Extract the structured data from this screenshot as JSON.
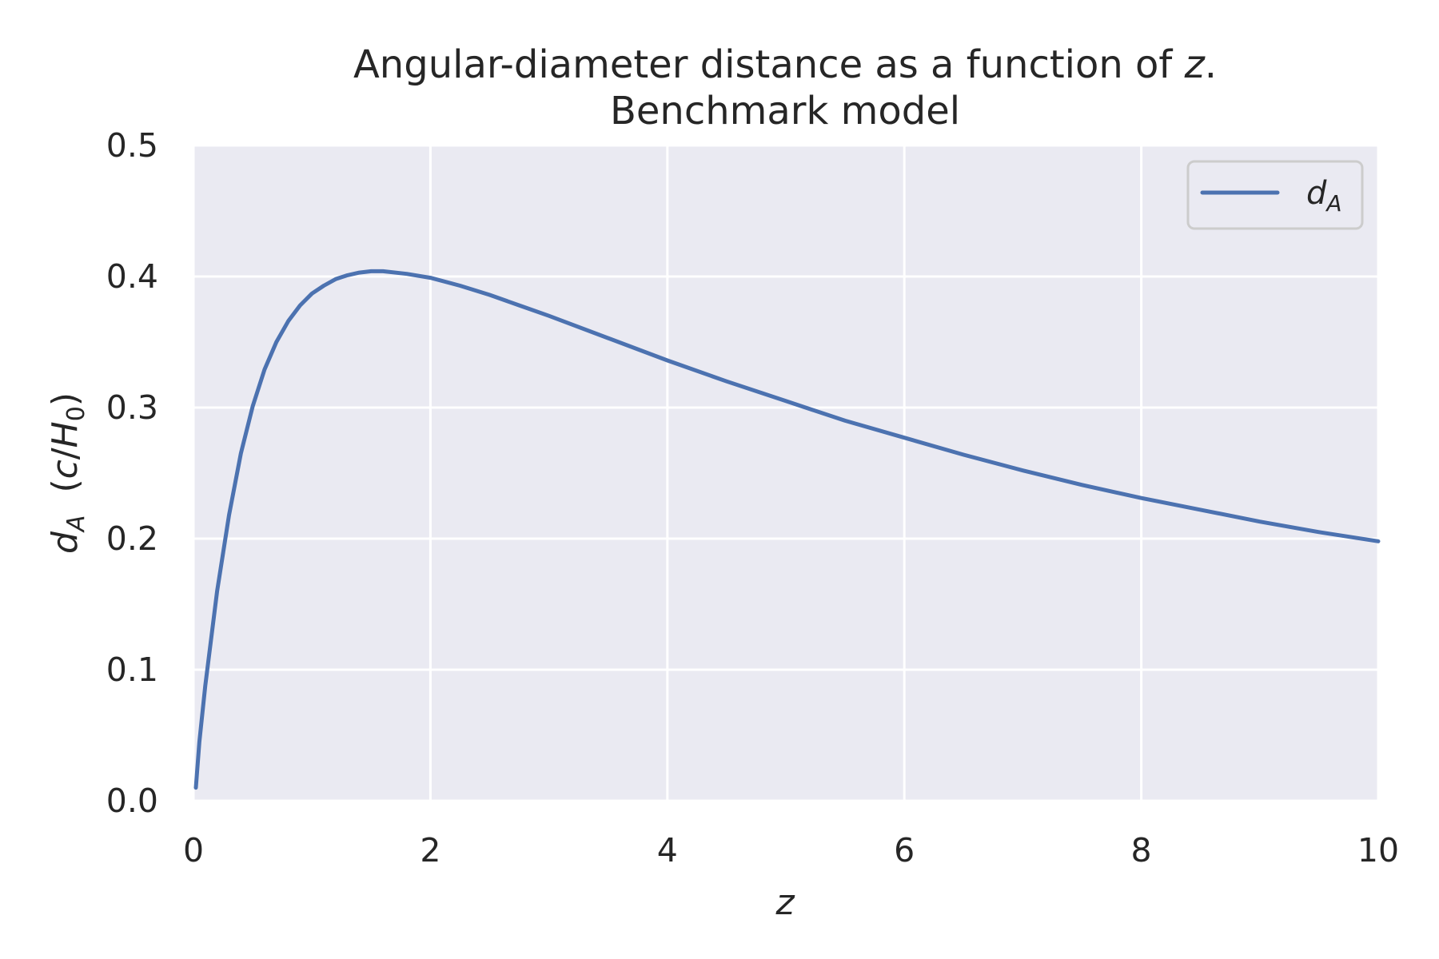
{
  "chart_data": {
    "type": "line",
    "title": "Angular-diameter distance as a function of z.",
    "title_line1_prefix": "Angular-diameter distance as a function of ",
    "title_line1_var": "z",
    "title_line1_suffix": ".",
    "subtitle": "Benchmark model",
    "xlabel": "z",
    "ylabel_parts": {
      "var": "d",
      "sub": "A",
      "open": "  (",
      "c": "c",
      "slash": "/",
      "H": "H",
      "Hsub": "0",
      "close": ")"
    },
    "xlim": [
      0,
      10
    ],
    "ylim": [
      0,
      0.5
    ],
    "xticks": [
      0,
      2,
      4,
      6,
      8,
      10
    ],
    "xtick_labels": [
      "0",
      "2",
      "4",
      "6",
      "8",
      "10"
    ],
    "yticks": [
      0.0,
      0.1,
      0.2,
      0.3,
      0.4,
      0.5
    ],
    "ytick_labels": [
      "0.0",
      "0.1",
      "0.2",
      "0.3",
      "0.4",
      "0.5"
    ],
    "grid": true,
    "legend_position": "top-right",
    "series": [
      {
        "name": "d_A",
        "legend_var": "d",
        "legend_sub": "A",
        "color": "#4c72b0",
        "x": [
          0.02,
          0.05,
          0.1,
          0.2,
          0.3,
          0.4,
          0.5,
          0.6,
          0.7,
          0.8,
          0.9,
          1.0,
          1.1,
          1.2,
          1.3,
          1.4,
          1.5,
          1.6,
          1.8,
          2.0,
          2.25,
          2.5,
          2.75,
          3.0,
          3.5,
          4.0,
          4.5,
          5.0,
          5.5,
          6.0,
          6.5,
          7.0,
          7.5,
          8.0,
          8.5,
          9.0,
          9.5,
          10.0
        ],
        "y": [
          0.01,
          0.045,
          0.088,
          0.16,
          0.218,
          0.265,
          0.301,
          0.329,
          0.35,
          0.366,
          0.378,
          0.387,
          0.393,
          0.398,
          0.401,
          0.403,
          0.404,
          0.404,
          0.402,
          0.399,
          0.393,
          0.386,
          0.378,
          0.37,
          0.353,
          0.336,
          0.32,
          0.305,
          0.29,
          0.277,
          0.264,
          0.252,
          0.241,
          0.231,
          0.222,
          0.213,
          0.205,
          0.198
        ]
      }
    ]
  },
  "colors": {
    "plot_background": "#eaeaf2",
    "grid": "#ffffff",
    "text": "#262626",
    "legend_border": "#cccccc"
  }
}
